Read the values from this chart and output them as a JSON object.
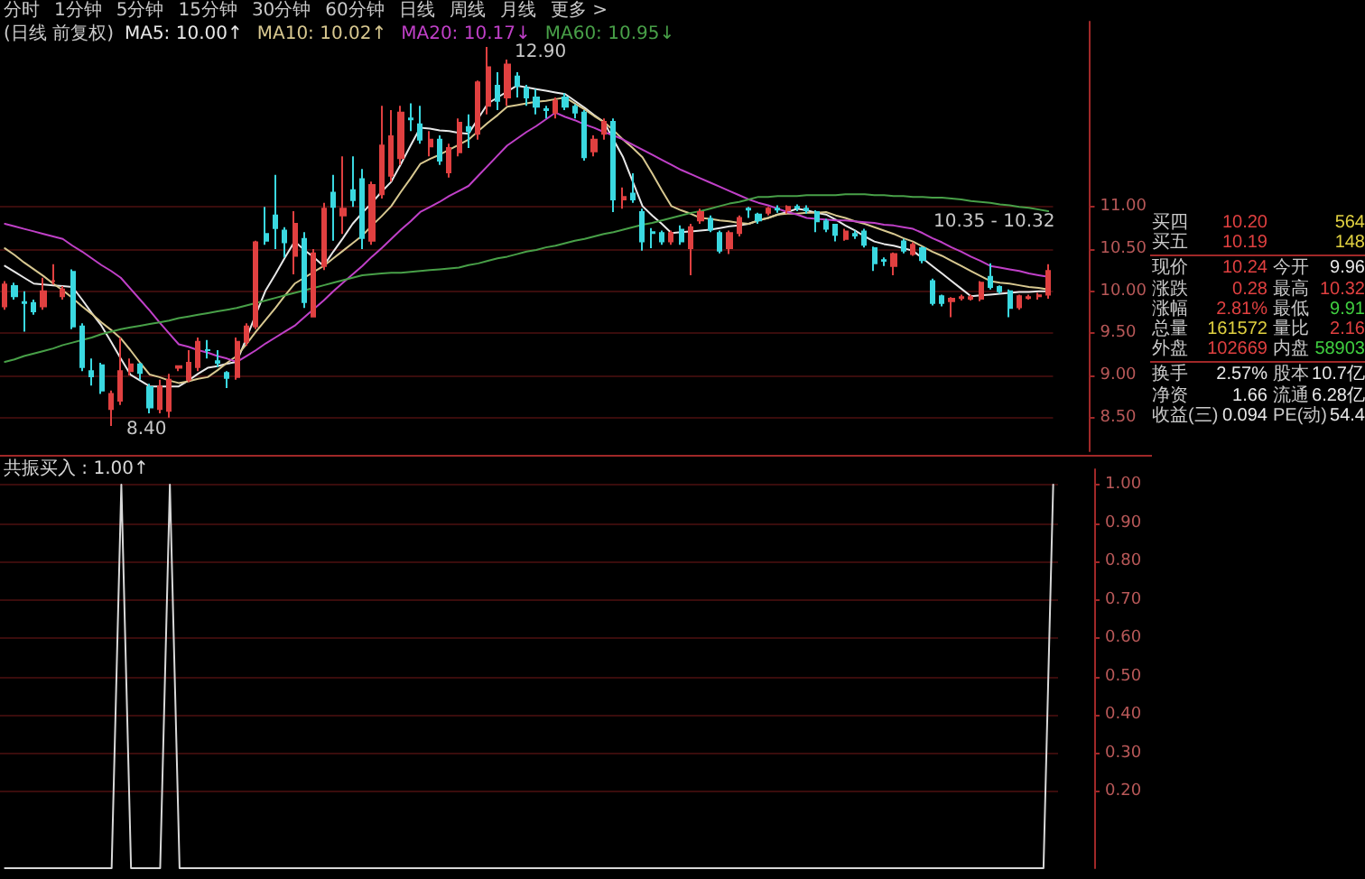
{
  "chart_data": [
    {
      "type": "candlestick",
      "title": "(日线 前复权)",
      "annotations": [
        "分时",
        "1分钟",
        "5分钟",
        "15分钟",
        "30分钟",
        "60分钟",
        "日线",
        "周线",
        "月线",
        "更多 >",
        "12.90",
        "8.40",
        "10.35 - 10.32"
      ],
      "categories": [
        null,
        null,
        null,
        null,
        null,
        null,
        null,
        null,
        null,
        null,
        null,
        null,
        null,
        null,
        null,
        null,
        null,
        null,
        null,
        null,
        null,
        null,
        null,
        null,
        null,
        null,
        null,
        null,
        null,
        null,
        null,
        null,
        null,
        null,
        null,
        null,
        null,
        null,
        null,
        null,
        null,
        null,
        null,
        null,
        null,
        null,
        null,
        null,
        null,
        null,
        null,
        null,
        null,
        null,
        null,
        null,
        null,
        null,
        null,
        null,
        null,
        null,
        null,
        null,
        null,
        null,
        null,
        null,
        null,
        null,
        null,
        null,
        null,
        null,
        null,
        null,
        null,
        null,
        null,
        null,
        null,
        null,
        null,
        null,
        null,
        null,
        null,
        null,
        null,
        null,
        null,
        null,
        null,
        null,
        null,
        null,
        null,
        null,
        null,
        null,
        null,
        null,
        null,
        null,
        null,
        null,
        null,
        null,
        null
      ],
      "ohlc": [
        [
          9.82,
          10.12,
          9.78,
          10.08
        ],
        [
          10.06,
          10.1,
          9.9,
          9.94
        ],
        [
          9.87,
          10.0,
          9.52,
          9.86
        ],
        [
          9.86,
          9.9,
          9.72,
          9.76
        ],
        [
          9.82,
          10.16,
          9.78,
          10.0
        ],
        [
          10.12,
          10.32,
          10.08,
          10.12
        ],
        [
          9.94,
          10.06,
          9.9,
          10.02
        ],
        [
          10.23,
          10.26,
          9.55,
          9.58
        ],
        [
          9.58,
          9.62,
          9.05,
          9.1
        ],
        [
          9.05,
          9.2,
          8.88,
          8.99
        ],
        [
          9.12,
          9.15,
          8.78,
          8.82
        ],
        [
          8.6,
          8.82,
          8.4,
          8.78
        ],
        [
          8.7,
          9.45,
          8.65,
          9.05
        ],
        [
          9.05,
          9.2,
          9.0,
          9.13
        ],
        [
          9.13,
          9.15,
          8.95,
          9.03
        ],
        [
          8.86,
          8.9,
          8.55,
          8.62
        ],
        [
          8.6,
          8.95,
          8.55,
          8.87
        ],
        [
          8.58,
          9.02,
          8.5,
          8.95
        ],
        [
          9.09,
          9.12,
          9.05,
          9.11
        ],
        [
          8.95,
          9.3,
          8.92,
          9.15
        ],
        [
          9.1,
          9.45,
          9.05,
          9.4
        ],
        [
          9.3,
          9.42,
          9.2,
          9.3
        ],
        [
          9.17,
          9.3,
          9.1,
          9.15
        ],
        [
          9.03,
          9.05,
          8.85,
          8.97
        ],
        [
          8.98,
          9.45,
          8.95,
          9.4
        ],
        [
          9.4,
          9.62,
          9.35,
          9.58
        ],
        [
          9.58,
          10.6,
          9.55,
          10.58
        ],
        [
          10.68,
          11.0,
          10.55,
          10.6
        ],
        [
          10.9,
          11.38,
          10.5,
          10.75
        ],
        [
          10.72,
          10.76,
          10.4,
          10.58
        ],
        [
          10.42,
          10.95,
          10.2,
          10.8
        ],
        [
          10.62,
          10.7,
          9.8,
          9.87
        ],
        [
          9.7,
          10.5,
          9.7,
          10.45
        ],
        [
          10.3,
          11.05,
          10.25,
          10.98
        ],
        [
          11.17,
          11.38,
          10.6,
          11.0
        ],
        [
          10.9,
          11.6,
          10.68,
          10.98
        ],
        [
          11.2,
          11.6,
          11.0,
          11.08
        ],
        [
          11.33,
          11.45,
          10.5,
          10.63
        ],
        [
          10.6,
          11.3,
          10.55,
          11.26
        ],
        [
          11.15,
          12.2,
          11.1,
          11.73
        ],
        [
          11.37,
          12.15,
          11.3,
          11.84
        ],
        [
          11.58,
          12.2,
          11.5,
          12.12
        ],
        [
          12.05,
          12.23,
          11.9,
          12.04
        ],
        [
          11.98,
          12.2,
          11.75,
          11.8
        ],
        [
          11.72,
          11.9,
          11.6,
          11.8
        ],
        [
          11.8,
          11.85,
          11.5,
          11.55
        ],
        [
          11.41,
          11.75,
          11.35,
          11.7
        ],
        [
          11.65,
          12.05,
          11.6,
          12.0
        ],
        [
          11.95,
          12.1,
          11.7,
          11.9
        ],
        [
          11.87,
          12.5,
          11.8,
          12.48
        ],
        [
          12.2,
          12.9,
          12.1,
          12.66
        ],
        [
          12.44,
          12.6,
          12.15,
          12.26
        ],
        [
          12.3,
          12.75,
          12.2,
          12.69
        ],
        [
          12.55,
          12.6,
          12.3,
          12.44
        ],
        [
          12.41,
          12.45,
          12.2,
          12.3
        ],
        [
          12.3,
          12.4,
          12.1,
          12.19
        ],
        [
          12.16,
          12.2,
          12.05,
          12.15
        ],
        [
          12.12,
          12.3,
          12.05,
          12.26
        ],
        [
          12.3,
          12.35,
          12.15,
          12.19
        ],
        [
          12.19,
          12.22,
          12.05,
          12.12
        ],
        [
          12.12,
          12.15,
          11.55,
          11.59
        ],
        [
          11.66,
          11.85,
          11.6,
          11.8
        ],
        [
          11.87,
          12.05,
          11.8,
          12.01
        ],
        [
          12.01,
          12.05,
          10.94,
          11.09
        ],
        [
          11.09,
          11.23,
          10.98,
          11.12
        ],
        [
          11.16,
          11.4,
          11.05,
          11.09
        ],
        [
          10.94,
          10.98,
          10.48,
          10.59
        ],
        [
          10.7,
          10.75,
          10.51,
          10.69
        ],
        [
          10.69,
          10.72,
          10.55,
          10.59
        ],
        [
          10.59,
          10.72,
          10.55,
          10.69
        ],
        [
          10.73,
          10.78,
          10.55,
          10.59
        ],
        [
          10.51,
          10.8,
          10.19,
          10.76
        ],
        [
          10.84,
          10.98,
          10.8,
          10.94
        ],
        [
          10.86,
          10.9,
          10.7,
          10.73
        ],
        [
          10.69,
          10.72,
          10.45,
          10.48
        ],
        [
          10.51,
          10.72,
          10.44,
          10.69
        ],
        [
          10.69,
          10.9,
          10.65,
          10.87
        ],
        [
          10.98,
          11.0,
          10.87,
          10.97
        ],
        [
          10.91,
          10.93,
          10.8,
          10.84
        ],
        [
          10.93,
          11.0,
          10.9,
          10.98
        ],
        [
          10.98,
          11.02,
          10.93,
          10.97
        ],
        [
          10.96,
          11.02,
          10.92,
          11.0
        ],
        [
          11.0,
          11.03,
          10.95,
          10.99
        ],
        [
          10.98,
          11.02,
          10.92,
          10.96
        ],
        [
          10.94,
          10.96,
          10.7,
          10.83
        ],
        [
          10.83,
          10.86,
          10.7,
          10.74
        ],
        [
          10.79,
          10.8,
          10.59,
          10.67
        ],
        [
          10.62,
          10.74,
          10.6,
          10.71
        ],
        [
          10.68,
          10.72,
          10.62,
          10.66
        ],
        [
          10.71,
          10.74,
          10.52,
          10.55
        ],
        [
          10.51,
          10.53,
          10.24,
          10.33
        ],
        [
          10.37,
          10.4,
          10.3,
          10.36
        ],
        [
          10.3,
          10.46,
          10.19,
          10.44
        ],
        [
          10.59,
          10.62,
          10.45,
          10.48
        ],
        [
          10.44,
          10.58,
          10.42,
          10.55
        ],
        [
          10.51,
          10.53,
          10.33,
          10.37
        ],
        [
          10.12,
          10.15,
          9.83,
          9.86
        ],
        [
          9.94,
          9.96,
          9.82,
          9.86
        ],
        [
          9.88,
          9.93,
          9.69,
          9.91
        ],
        [
          9.92,
          9.96,
          9.89,
          9.93
        ],
        [
          9.91,
          9.96,
          9.89,
          9.93
        ],
        [
          9.91,
          10.12,
          9.88,
          10.1
        ],
        [
          10.17,
          10.33,
          10.02,
          10.05
        ],
        [
          10.05,
          10.07,
          9.97,
          10.0
        ],
        [
          10.0,
          10.02,
          9.69,
          9.8
        ],
        [
          9.81,
          9.96,
          9.78,
          9.94
        ],
        [
          9.92,
          9.96,
          9.9,
          9.93
        ],
        [
          9.94,
          9.98,
          9.9,
          9.95
        ],
        [
          9.96,
          10.32,
          9.91,
          10.24
        ]
      ],
      "series": [
        {
          "name": "MA5: 10.00↑",
          "type": "line",
          "color": "#e8e8e8",
          "values": [
            10.3,
            10.23,
            10.16,
            10.09,
            10.08,
            10.07,
            10.06,
            10.05,
            9.9,
            9.74,
            9.59,
            9.4,
            9.2,
            9.01,
            8.94,
            8.87,
            8.87,
            8.87,
            8.87,
            8.94,
            9.02,
            9.09,
            9.11,
            9.14,
            9.16,
            9.44,
            9.73,
            10.01,
            10.2,
            10.4,
            10.59,
            10.49,
            10.4,
            10.3,
            10.47,
            10.63,
            10.8,
            10.93,
            11.05,
            11.18,
            11.3,
            11.51,
            11.73,
            11.94,
            11.93,
            11.91,
            11.9,
            11.88,
            11.87,
            12.05,
            12.23,
            12.3,
            12.37,
            12.44,
            12.42,
            12.4,
            12.38,
            12.36,
            12.34,
            12.26,
            12.18,
            12.09,
            12.01,
            11.8,
            11.59,
            11.3,
            11.01,
            10.9,
            10.8,
            10.69,
            10.7,
            10.71,
            10.72,
            10.73,
            10.75,
            10.77,
            10.78,
            10.8,
            10.84,
            10.87,
            10.91,
            10.94,
            10.98,
            10.96,
            10.93,
            10.91,
            10.85,
            10.78,
            10.72,
            10.65,
            10.59,
            10.56,
            10.54,
            10.51,
            10.48,
            10.39,
            10.3,
            10.21,
            10.12,
            10.03,
            9.94,
            9.95,
            9.96,
            9.97,
            9.98,
            9.99,
            9.99,
            10.0,
            10.0
          ]
        },
        {
          "name": "MA10: 10.02↑",
          "type": "line",
          "color": "#d8c890",
          "values": [
            10.51,
            10.43,
            10.34,
            10.26,
            10.18,
            10.09,
            10.01,
            9.92,
            9.82,
            9.73,
            9.63,
            9.54,
            9.44,
            9.3,
            9.15,
            9.01,
            8.98,
            8.94,
            8.91,
            8.93,
            8.96,
            8.98,
            9.06,
            9.15,
            9.23,
            9.37,
            9.52,
            9.66,
            9.8,
            9.95,
            10.09,
            10.16,
            10.23,
            10.3,
            10.39,
            10.48,
            10.57,
            10.66,
            10.78,
            10.89,
            11.01,
            11.18,
            11.34,
            11.51,
            11.57,
            11.62,
            11.68,
            11.74,
            11.8,
            11.9,
            12.0,
            12.09,
            12.19,
            12.21,
            12.23,
            12.25,
            12.26,
            12.28,
            12.3,
            12.23,
            12.16,
            12.08,
            12.01,
            11.91,
            11.8,
            11.7,
            11.59,
            11.4,
            11.2,
            11.01,
            10.96,
            10.92,
            10.87,
            10.86,
            10.84,
            10.83,
            10.81,
            10.8,
            10.84,
            10.87,
            10.91,
            10.92,
            10.92,
            10.93,
            10.93,
            10.94,
            10.9,
            10.87,
            10.83,
            10.8,
            10.76,
            10.72,
            10.68,
            10.63,
            10.59,
            10.53,
            10.47,
            10.42,
            10.36,
            10.3,
            10.24,
            10.18,
            10.12,
            10.1,
            10.09,
            10.07,
            10.05,
            10.04,
            10.02
          ]
        },
        {
          "name": "MA20: 10.17↓",
          "type": "line",
          "color": "#c040c8",
          "values": [
            10.8,
            10.77,
            10.74,
            10.71,
            10.68,
            10.65,
            10.62,
            10.54,
            10.47,
            10.39,
            10.31,
            10.24,
            10.16,
            10.03,
            9.9,
            9.77,
            9.63,
            9.5,
            9.37,
            9.34,
            9.3,
            9.27,
            9.23,
            9.2,
            9.16,
            9.23,
            9.3,
            9.38,
            9.45,
            9.52,
            9.59,
            9.69,
            9.79,
            9.89,
            10.0,
            10.1,
            10.2,
            10.3,
            10.41,
            10.51,
            10.62,
            10.73,
            10.83,
            10.94,
            11.0,
            11.06,
            11.13,
            11.19,
            11.25,
            11.37,
            11.49,
            11.61,
            11.73,
            11.81,
            11.89,
            11.96,
            12.04,
            12.12,
            12.07,
            12.03,
            11.98,
            11.94,
            11.89,
            11.85,
            11.8,
            11.74,
            11.68,
            11.62,
            11.56,
            11.5,
            11.44,
            11.39,
            11.34,
            11.29,
            11.24,
            11.19,
            11.14,
            11.09,
            11.05,
            11.02,
            10.98,
            10.94,
            10.91,
            10.87,
            10.86,
            10.85,
            10.84,
            10.84,
            10.83,
            10.82,
            10.81,
            10.79,
            10.78,
            10.76,
            10.74,
            10.69,
            10.63,
            10.58,
            10.52,
            10.47,
            10.41,
            10.36,
            10.3,
            10.28,
            10.26,
            10.24,
            10.21,
            10.19,
            10.17
          ]
        },
        {
          "name": "MA60: 10.95↓",
          "type": "line",
          "color": "#48a048",
          "values": [
            9.16,
            9.19,
            9.23,
            9.26,
            9.29,
            9.32,
            9.36,
            9.39,
            9.42,
            9.45,
            9.49,
            9.52,
            9.55,
            9.57,
            9.59,
            9.61,
            9.63,
            9.65,
            9.68,
            9.7,
            9.72,
            9.74,
            9.76,
            9.78,
            9.8,
            9.83,
            9.86,
            9.89,
            9.92,
            9.95,
            9.98,
            10.01,
            10.04,
            10.07,
            10.1,
            10.13,
            10.16,
            10.19,
            10.2,
            10.21,
            10.22,
            10.22,
            10.23,
            10.24,
            10.25,
            10.26,
            10.27,
            10.28,
            10.31,
            10.33,
            10.36,
            10.39,
            10.41,
            10.44,
            10.47,
            10.49,
            10.52,
            10.54,
            10.57,
            10.6,
            10.62,
            10.65,
            10.68,
            10.7,
            10.73,
            10.76,
            10.79,
            10.81,
            10.84,
            10.87,
            10.9,
            10.93,
            10.95,
            10.98,
            11.01,
            11.04,
            11.06,
            11.09,
            11.12,
            11.12,
            11.13,
            11.13,
            11.13,
            11.14,
            11.14,
            11.14,
            11.14,
            11.15,
            11.15,
            11.15,
            11.14,
            11.14,
            11.13,
            11.13,
            11.12,
            11.12,
            11.11,
            11.11,
            11.1,
            11.09,
            11.07,
            11.06,
            11.05,
            11.03,
            11.02,
            11.0,
            10.99,
            10.97,
            10.95
          ]
        }
      ],
      "ylim": [
        8.1,
        13.2
      ],
      "yticks": [
        {
          "value": 8.5,
          "label": "8.50"
        },
        {
          "value": 9,
          "label": "9.00"
        },
        {
          "value": 9.5,
          "label": "9.50"
        },
        {
          "value": 10,
          "label": "10.00"
        },
        {
          "value": 10.5,
          "label": "10.50"
        },
        {
          "value": 11,
          "label": "11.00"
        }
      ],
      "tick_labels": "y",
      "grid": "y",
      "marker": "none",
      "line_style": "solid"
    },
    {
      "type": "line",
      "categories": [
        null,
        null,
        null,
        null,
        null,
        null,
        null,
        null,
        null,
        null,
        null,
        null,
        null,
        null,
        null,
        null,
        null,
        null,
        null,
        null,
        null,
        null,
        null,
        null,
        null,
        null,
        null,
        null,
        null,
        null,
        null,
        null,
        null,
        null,
        null,
        null,
        null,
        null,
        null,
        null,
        null,
        null,
        null,
        null,
        null,
        null,
        null,
        null,
        null,
        null,
        null,
        null,
        null,
        null,
        null,
        null,
        null,
        null,
        null,
        null,
        null,
        null,
        null,
        null,
        null,
        null,
        null,
        null,
        null,
        null,
        null,
        null,
        null,
        null,
        null,
        null,
        null,
        null,
        null,
        null,
        null,
        null,
        null,
        null,
        null,
        null,
        null,
        null,
        null,
        null,
        null,
        null,
        null,
        null,
        null,
        null,
        null,
        null,
        null,
        null,
        null,
        null,
        null,
        null,
        null,
        null,
        null,
        null,
        null
      ],
      "series": [
        {
          "name": "共振买入 : 1.00↑",
          "color": "#d8d8d8",
          "values": [
            0,
            0,
            0,
            0,
            0,
            0,
            0,
            0,
            0,
            0,
            0,
            0,
            1,
            0,
            0,
            0,
            0,
            1,
            0,
            0,
            0,
            0,
            0,
            0,
            0,
            0,
            0,
            0,
            0,
            0,
            0,
            0,
            0,
            0,
            0,
            0,
            0,
            0,
            0,
            0,
            0,
            0,
            0,
            0,
            0,
            0,
            0,
            0,
            0,
            0,
            0,
            0,
            0,
            0,
            0,
            0,
            0,
            0,
            0,
            0,
            0,
            0,
            0,
            0,
            0,
            0,
            0,
            0,
            0,
            0,
            0,
            0,
            0,
            0,
            0,
            0,
            0,
            0,
            0,
            0,
            0,
            0,
            0,
            0,
            0,
            0,
            0,
            0,
            0,
            0,
            0,
            0,
            0,
            0,
            0,
            0,
            0,
            0,
            0,
            0,
            0,
            0,
            0,
            0,
            0,
            0,
            0,
            0,
            1
          ]
        }
      ],
      "ylim": [
        0,
        1.04
      ],
      "yticks": [
        {
          "value": 0.2,
          "label": "0.20"
        },
        {
          "value": 0.3,
          "label": "0.30"
        },
        {
          "value": 0.4,
          "label": "0.40"
        },
        {
          "value": 0.5,
          "label": "0.50"
        },
        {
          "value": 0.6,
          "label": "0.60"
        },
        {
          "value": 0.7,
          "label": "0.70"
        },
        {
          "value": 0.8,
          "label": "0.80"
        },
        {
          "value": 0.9,
          "label": "0.90"
        },
        {
          "value": 1,
          "label": "1.00"
        }
      ],
      "tick_labels": "y",
      "grid": "y",
      "marker": "none",
      "line_style": "solid"
    },
    {
      "type": "other",
      "annotations": [
        "买四",
        "10.20",
        "564",
        "买五",
        "10.19",
        "148",
        "现价",
        "10.24",
        "今开",
        "9.96",
        "涨跌",
        "0.28",
        "最高",
        "10.32",
        "涨幅",
        "2.81%",
        "最低",
        "9.91",
        "总量",
        "161572",
        "量比",
        "2.16",
        "外盘",
        "102669",
        "内盘",
        "58903",
        "换手",
        "2.57%",
        "股本",
        "10.7亿",
        "净资",
        "1.66",
        "流通",
        "6.28亿",
        "收益(三)",
        "0.094",
        "PE(动)",
        "54.4"
      ],
      "colors": [
        "#c8c8c8",
        "#e04040",
        "#e0d040",
        "#c8c8c8",
        "#e04040",
        "#e0d040",
        "#c8c8c8",
        "#e04040",
        "#c8c8c8",
        "#e8e8e8",
        "#c8c8c8",
        "#e04040",
        "#c8c8c8",
        "#e04040",
        "#c8c8c8",
        "#e04040",
        "#c8c8c8",
        "#40d040",
        "#c8c8c8",
        "#e0d040",
        "#c8c8c8",
        "#e04040",
        "#c8c8c8",
        "#e04040",
        "#c8c8c8",
        "#40d040",
        "#c8c8c8",
        "#e8e8e8",
        "#c8c8c8",
        "#e8e8e8",
        "#c8c8c8",
        "#e8e8e8",
        "#c8c8c8",
        "#e8e8e8",
        "#c8c8c8",
        "#e8e8e8",
        "#c8c8c8",
        "#e8e8e8"
      ]
    }
  ]
}
